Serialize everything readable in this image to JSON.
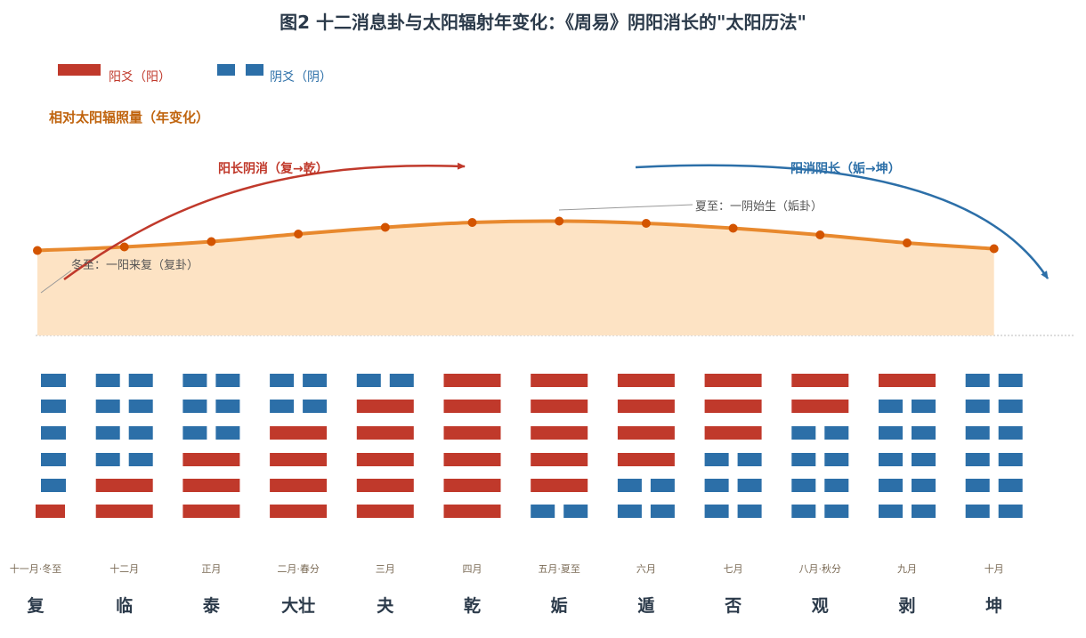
{
  "title": "图2  十二消息卦与太阳辐射年变化：《周易》阴阳消长的\"太阳历法\"",
  "legend": {
    "yang": "阳爻（阳）",
    "yin": "阴爻（阴）"
  },
  "colors": {
    "yang": "#c0392b",
    "yin": "#2c6fa8",
    "curve": "#e8892e",
    "point": "#d35400",
    "fill": "#fde3c4"
  },
  "y_axis_title": "相对太阳辐照量（年变化）",
  "annotations": {
    "arrow_left": "阳长阴消（复→乾）",
    "arrow_right": "阳消阴长（姤→坤）",
    "winter": "冬至：一阳来复（复卦）",
    "summer": "夏至：一阴始生（姤卦）"
  },
  "chart_data": {
    "type": "area",
    "categories": [
      "十一月·冬至",
      "十二月",
      "正月",
      "二月·春分",
      "三月",
      "四月",
      "五月·夏至",
      "六月",
      "七月",
      "八月·秋分",
      "九月",
      "十月"
    ],
    "names": [
      "复",
      "临",
      "泰",
      "大壮",
      "夬",
      "乾",
      "姤",
      "遁",
      "否",
      "观",
      "剥",
      "坤"
    ],
    "values": [
      0.31,
      0.39,
      0.51,
      0.68,
      0.83,
      0.94,
      0.97,
      0.92,
      0.81,
      0.66,
      0.48,
      0.35
    ],
    "ylim": [
      -1.6,
      3.2
    ],
    "hexagrams": [
      [
        1,
        0,
        0,
        0,
        0,
        0
      ],
      [
        1,
        1,
        0,
        0,
        0,
        0
      ],
      [
        1,
        1,
        1,
        0,
        0,
        0
      ],
      [
        1,
        1,
        1,
        1,
        0,
        0
      ],
      [
        1,
        1,
        1,
        1,
        1,
        0
      ],
      [
        1,
        1,
        1,
        1,
        1,
        1
      ],
      [
        0,
        1,
        1,
        1,
        1,
        1
      ],
      [
        0,
        0,
        1,
        1,
        1,
        1
      ],
      [
        0,
        0,
        0,
        1,
        1,
        1
      ],
      [
        0,
        0,
        0,
        0,
        1,
        1
      ],
      [
        0,
        0,
        0,
        0,
        0,
        1
      ],
      [
        0,
        0,
        0,
        0,
        0,
        0
      ]
    ]
  }
}
